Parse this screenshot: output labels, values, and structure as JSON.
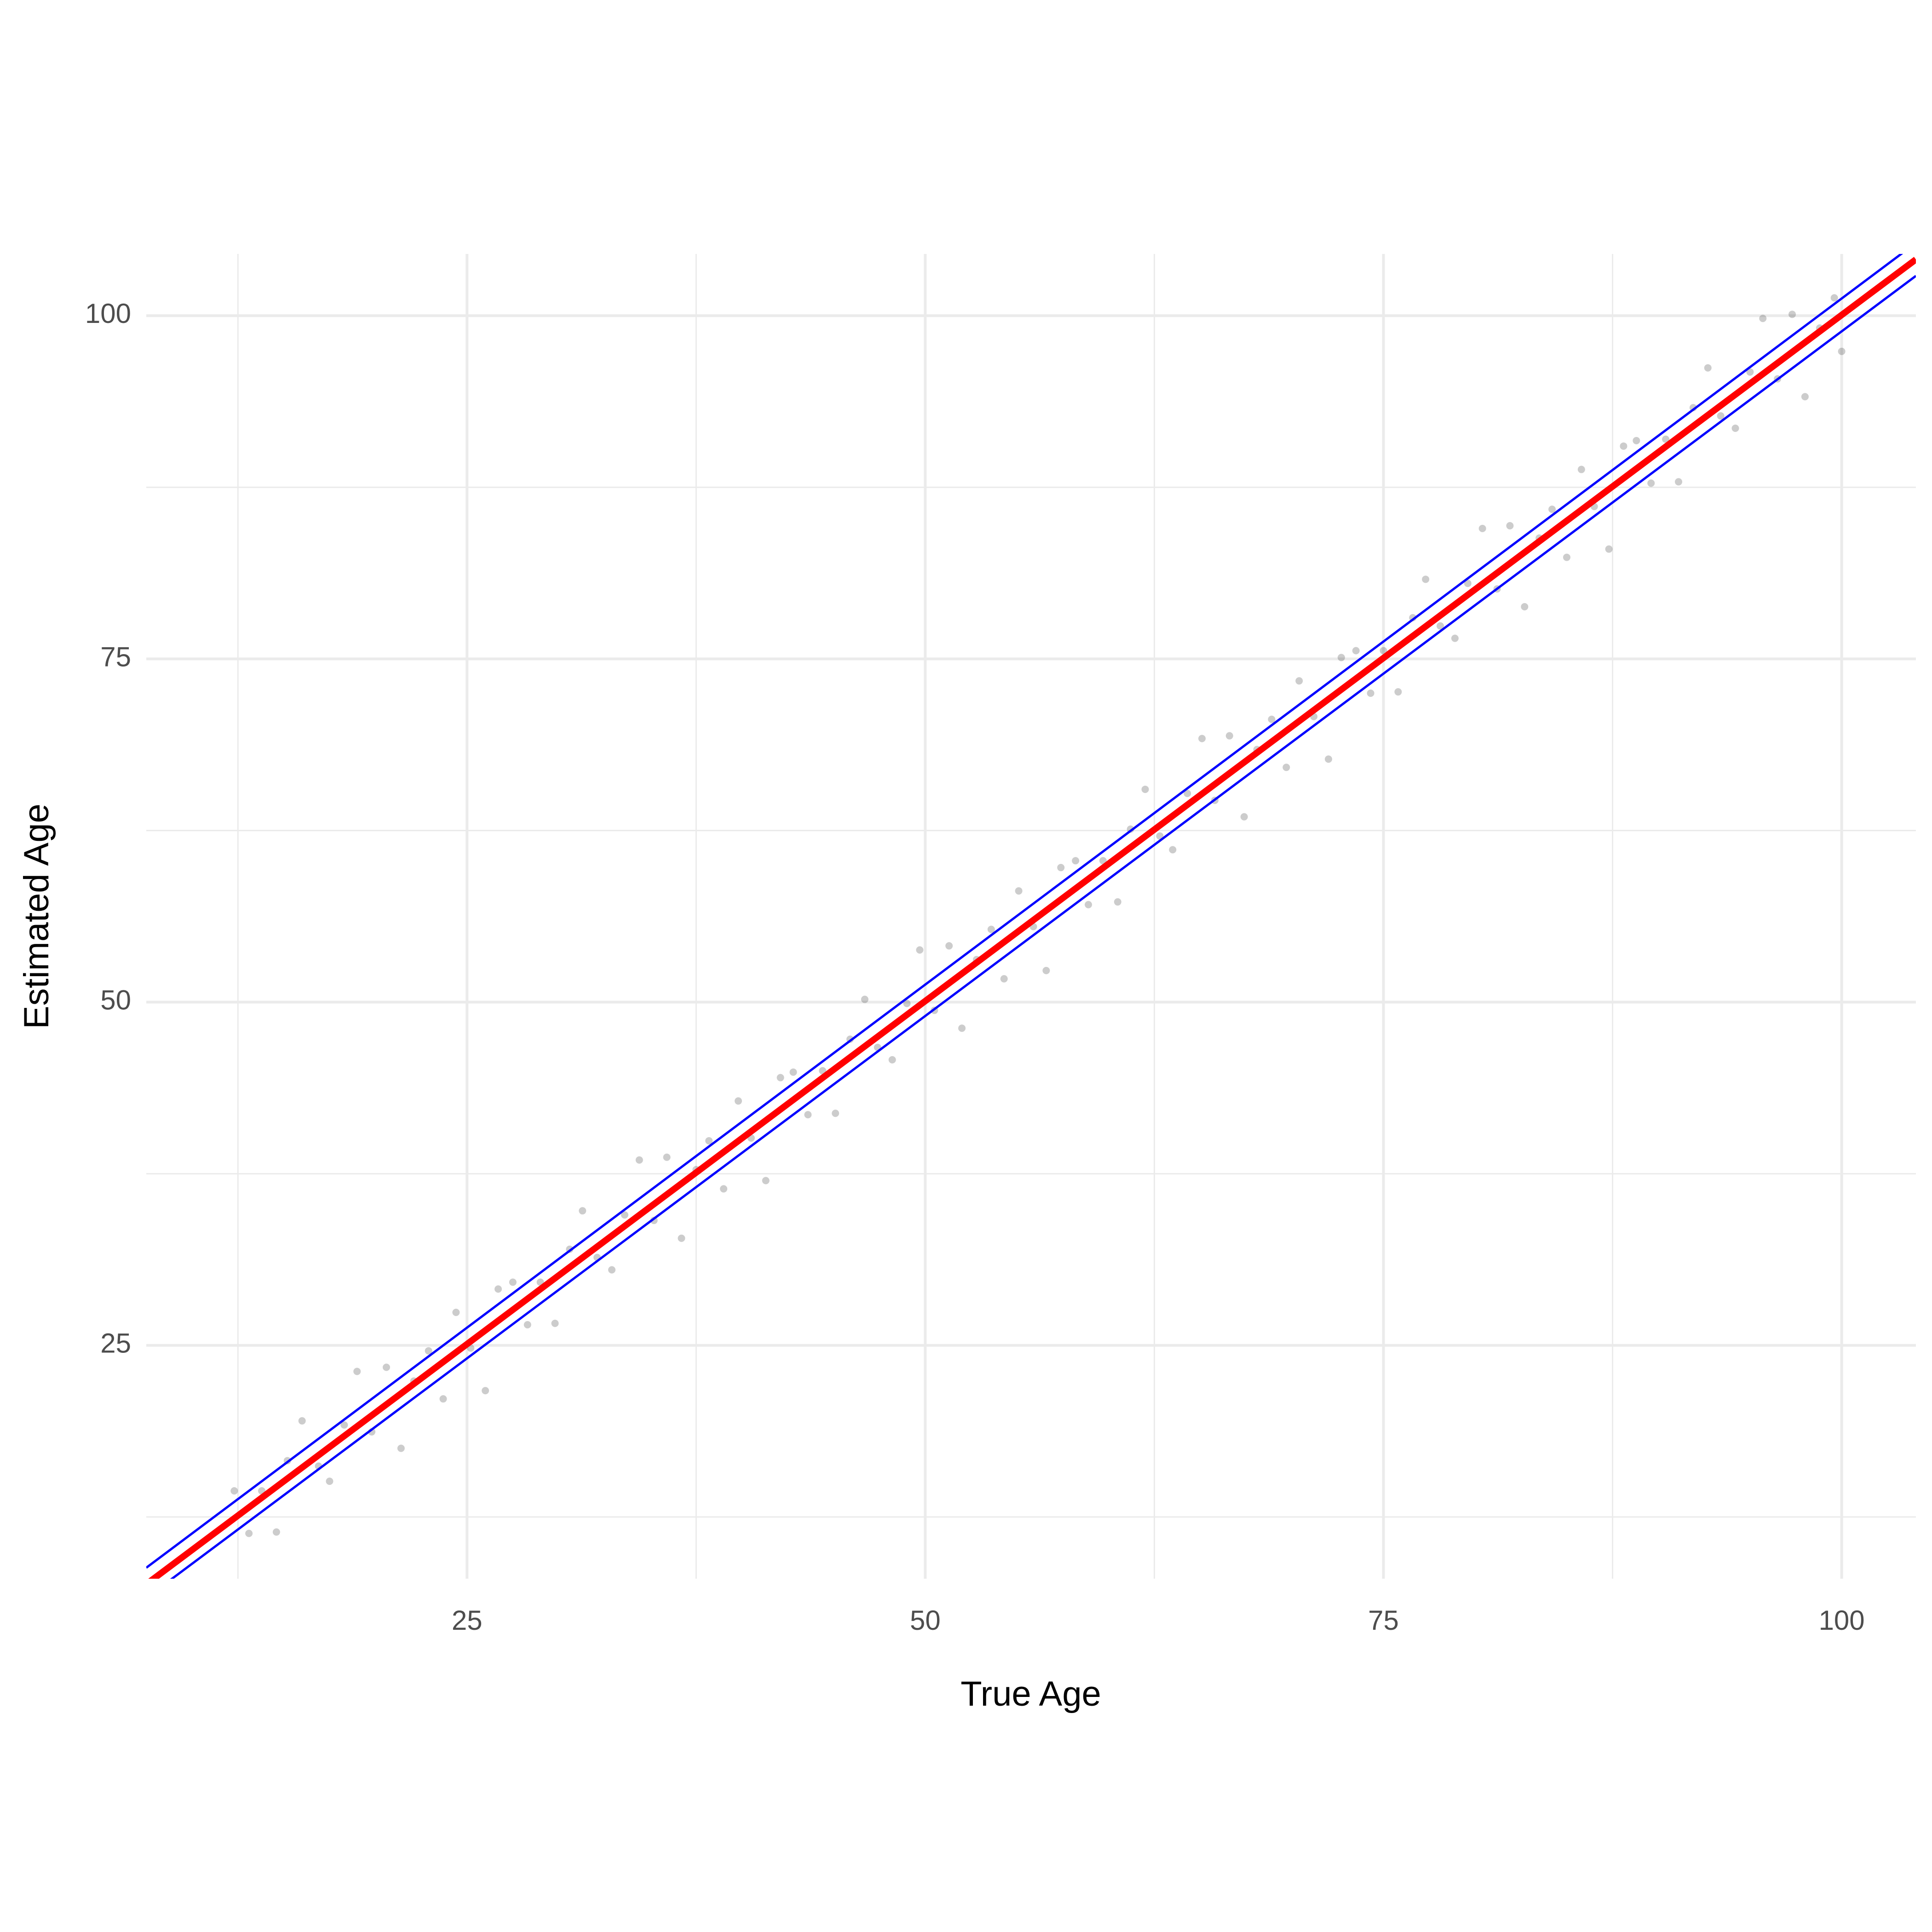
{
  "chart_data": {
    "type": "scatter",
    "x_label": "True Age",
    "y_label": "Estimated Age",
    "xlim": [
      7.5,
      104.05
    ],
    "ylim": [
      8.0,
      104.5
    ],
    "xticks": [
      25,
      50,
      75,
      100
    ],
    "yticks": [
      25,
      50,
      75,
      100
    ],
    "x_minor_ticks": [
      12.5,
      37.5,
      62.5,
      87.5
    ],
    "y_minor_ticks": [
      12.5,
      37.5,
      62.5,
      87.5
    ],
    "grid": true,
    "series": [
      {
        "kind": "points",
        "color": "#000000",
        "opacity": 0.2,
        "x": [
          12.3,
          13.1,
          13.8,
          14.6,
          15.2,
          16.0,
          16.9,
          17.5,
          18.3,
          19.0,
          19.8,
          20.6,
          21.4,
          22.1,
          22.9,
          23.7,
          24.4,
          25.2,
          26.0,
          26.7,
          27.5,
          28.3,
          29.0,
          29.8,
          30.6,
          31.3,
          32.1,
          32.9,
          33.6,
          34.4,
          35.2,
          35.9,
          36.7,
          37.5,
          38.2,
          39.0,
          39.8,
          40.5,
          41.3,
          42.1,
          42.8,
          43.6,
          44.4,
          45.1,
          45.9,
          46.7,
          47.4,
          48.2,
          49.0,
          49.7,
          50.5,
          51.3,
          52.0,
          52.8,
          53.6,
          54.3,
          55.1,
          55.9,
          56.6,
          57.4,
          58.2,
          58.9,
          59.7,
          60.5,
          61.2,
          62.0,
          62.8,
          63.5,
          64.3,
          65.1,
          65.8,
          66.6,
          67.4,
          68.1,
          68.9,
          69.7,
          70.4,
          71.2,
          72.0,
          72.7,
          73.5,
          74.3,
          75.0,
          75.8,
          76.6,
          77.3,
          78.1,
          78.9,
          79.6,
          80.4,
          81.2,
          81.9,
          82.7,
          83.5,
          84.2,
          85.0,
          85.8,
          86.5,
          87.3,
          88.1,
          88.8,
          89.6,
          90.4,
          91.1,
          91.9,
          92.7,
          93.4,
          94.2,
          95.0,
          95.7,
          96.5,
          97.3,
          98.0,
          98.8,
          99.6,
          100.0
        ],
        "values": [
          14.4,
          11.3,
          14.4,
          11.4,
          16.6,
          19.5,
          16.2,
          15.1,
          19.2,
          23.1,
          18.7,
          23.4,
          17.5,
          22.4,
          24.6,
          21.1,
          27.4,
          24.8,
          21.7,
          29.1,
          29.6,
          26.5,
          29.6,
          26.6,
          32.0,
          34.8,
          31.4,
          30.5,
          34.5,
          38.5,
          34.1,
          38.7,
          32.8,
          37.8,
          39.9,
          36.4,
          42.8,
          40.1,
          37.0,
          44.5,
          44.9,
          41.8,
          45.0,
          41.9,
          47.3,
          50.2,
          46.7,
          45.8,
          49.9,
          53.8,
          49.4,
          54.1,
          48.1,
          53.1,
          55.3,
          51.7,
          58.1,
          55.5,
          52.3,
          59.8,
          60.3,
          57.1,
          60.3,
          57.3,
          62.6,
          65.5,
          62.1,
          61.1,
          65.2,
          69.2,
          64.7,
          69.4,
          63.5,
          68.4,
          70.6,
          67.1,
          73.4,
          70.8,
          67.7,
          75.1,
          75.6,
          72.5,
          75.6,
          72.6,
          78.0,
          80.8,
          77.4,
          76.5,
          80.5,
          84.5,
          80.1,
          84.7,
          78.8,
          83.8,
          85.9,
          82.4,
          88.8,
          86.1,
          83.0,
          90.5,
          90.9,
          87.8,
          91.0,
          87.9,
          93.3,
          96.2,
          92.7,
          91.8,
          95.9,
          99.8,
          95.4,
          100.1,
          94.1,
          99.1,
          101.3,
          97.4
        ]
      },
      {
        "kind": "line",
        "color": "#ff0000",
        "width": 14,
        "x": [
          7.5,
          104.05
        ],
        "values": [
          7.6,
          104.1
        ]
      },
      {
        "kind": "line",
        "color": "#0000ff",
        "width": 5,
        "x": [
          7.5,
          104.05
        ],
        "values": [
          8.8,
          105.3
        ]
      },
      {
        "kind": "line",
        "color": "#0000ff",
        "width": 5,
        "x": [
          7.5,
          104.05
        ],
        "values": [
          6.6,
          102.9
        ]
      }
    ]
  }
}
